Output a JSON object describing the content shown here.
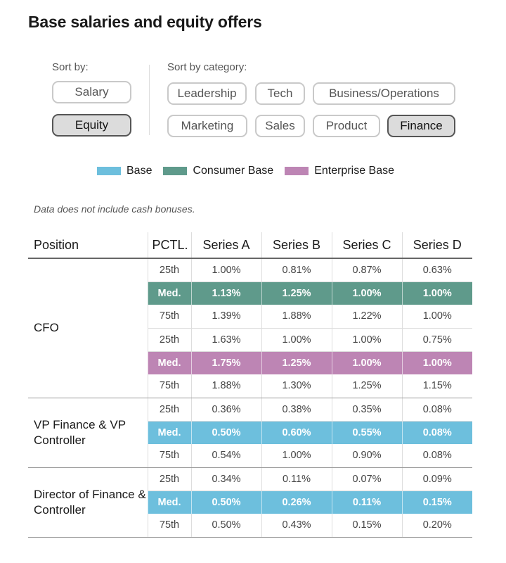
{
  "title": "Base salaries and equity offers",
  "sort": {
    "label": "Sort by:",
    "options": [
      "Salary",
      "Equity"
    ],
    "selected": "Equity"
  },
  "category": {
    "label": "Sort by category:",
    "options": [
      "Leadership",
      "Tech",
      "Business/Operations",
      "Marketing",
      "Sales",
      "Product",
      "Finance"
    ],
    "selected": "Finance"
  },
  "colors": {
    "base": "#6dbfdd",
    "consumer_base": "#5f9a8b",
    "enterprise_base": "#bd85b4"
  },
  "legend": [
    {
      "label": "Base",
      "color": "#6dbfdd"
    },
    {
      "label": "Consumer Base",
      "color": "#5f9a8b"
    },
    {
      "label": "Enterprise Base",
      "color": "#bd85b4"
    }
  ],
  "note": "Data does not include cash bonuses.",
  "table": {
    "headers": [
      "Position",
      "PCTL.",
      "Series A",
      "Series B",
      "Series C",
      "Series D"
    ],
    "rows": [
      {
        "position": "CFO",
        "pctl": "25th",
        "values": [
          "1.00%",
          "0.81%",
          "0.87%",
          "0.63%"
        ]
      },
      {
        "pctl": "Med.",
        "values": [
          "1.13%",
          "1.25%",
          "1.00%",
          "1.00%"
        ],
        "highlight": "consumer_base"
      },
      {
        "pctl": "75th",
        "values": [
          "1.39%",
          "1.88%",
          "1.22%",
          "1.00%"
        ]
      },
      {
        "pctl": "25th",
        "values": [
          "1.63%",
          "1.00%",
          "1.00%",
          "0.75%"
        ]
      },
      {
        "pctl": "Med.",
        "values": [
          "1.75%",
          "1.25%",
          "1.00%",
          "1.00%"
        ],
        "highlight": "enterprise_base"
      },
      {
        "pctl": "75th",
        "values": [
          "1.88%",
          "1.30%",
          "1.25%",
          "1.15%"
        ]
      },
      {
        "position": "VP Finance & VP Controller",
        "pctl": "25th",
        "values": [
          "0.36%",
          "0.38%",
          "0.35%",
          "0.08%"
        ]
      },
      {
        "pctl": "Med.",
        "values": [
          "0.50%",
          "0.60%",
          "0.55%",
          "0.08%"
        ],
        "highlight": "base"
      },
      {
        "pctl": "75th",
        "values": [
          "0.54%",
          "1.00%",
          "0.90%",
          "0.08%"
        ]
      },
      {
        "position": "Director of Finance & Controller",
        "pctl": "25th",
        "values": [
          "0.34%",
          "0.11%",
          "0.07%",
          "0.09%"
        ]
      },
      {
        "pctl": "Med.",
        "values": [
          "0.50%",
          "0.26%",
          "0.11%",
          "0.15%"
        ],
        "highlight": "base"
      },
      {
        "pctl": "75th",
        "values": [
          "0.50%",
          "0.43%",
          "0.15%",
          "0.20%"
        ]
      }
    ]
  }
}
